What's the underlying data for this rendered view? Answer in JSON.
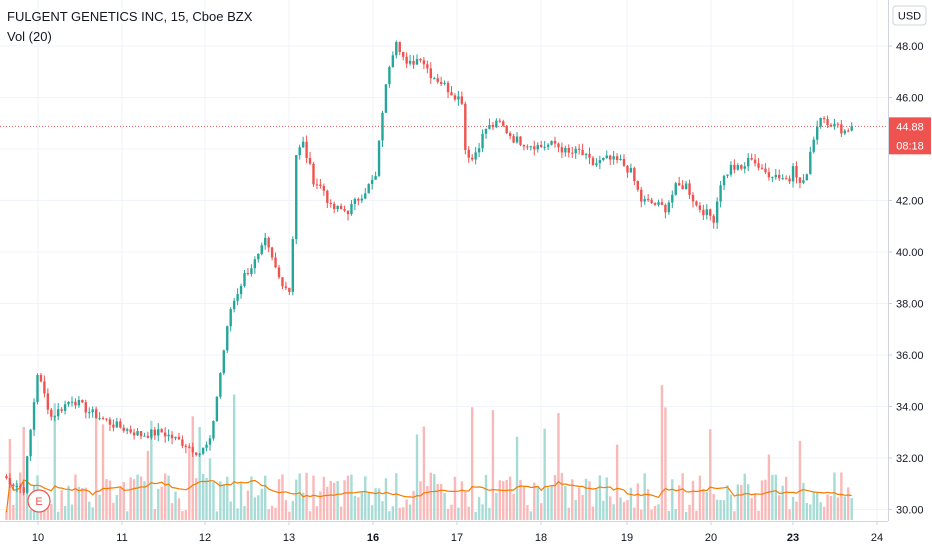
{
  "header": {
    "title": "FULGENT GENETICS INC, 15, Cboe BZX",
    "indicator": "Vol (20)",
    "currency": "USD"
  },
  "colors": {
    "up": "#26a69a",
    "down": "#ef5350",
    "grid": "#f0f3fa",
    "price_line": "#ef5350",
    "ma_line": "#f57c00",
    "vol_up": "#a7dcd6",
    "vol_down": "#f8b9b8"
  },
  "price_label": {
    "value": "44.88",
    "countdown": "08:18"
  },
  "earnings_marker": {
    "label": "E"
  },
  "chart_data": {
    "type": "candlestick",
    "y_axis": {
      "ticks": [
        "48.00",
        "46.00",
        "44.00",
        "42.00",
        "40.00",
        "38.00",
        "36.00",
        "34.00",
        "32.00",
        "30.00"
      ],
      "range": [
        29.7,
        49.2
      ]
    },
    "x_axis": {
      "ticks": [
        "10",
        "11",
        "12",
        "13",
        "16",
        "17",
        "18",
        "19",
        "20",
        "23",
        "24"
      ],
      "bold": [
        "16",
        "23"
      ]
    },
    "current_price": 44.88,
    "anchors": [
      [
        0,
        31.3
      ],
      [
        3,
        31.0
      ],
      [
        6,
        30.8
      ],
      [
        9,
        34.2
      ],
      [
        10,
        35.3
      ],
      [
        14,
        33.6
      ],
      [
        20,
        34.3
      ],
      [
        25,
        33.8
      ],
      [
        32,
        33.3
      ],
      [
        40,
        32.9
      ],
      [
        46,
        33.0
      ],
      [
        52,
        32.6
      ],
      [
        57,
        32.2
      ],
      [
        60,
        32.6
      ],
      [
        62,
        34.4
      ],
      [
        64,
        36.2
      ],
      [
        66,
        37.8
      ],
      [
        70,
        39.1
      ],
      [
        74,
        39.8
      ],
      [
        76,
        40.4
      ],
      [
        80,
        39.0
      ],
      [
        83,
        38.5
      ],
      [
        84,
        40.6
      ],
      [
        85,
        43.8
      ],
      [
        87,
        44.2
      ],
      [
        90,
        42.8
      ],
      [
        93,
        42.4
      ],
      [
        95,
        41.7
      ],
      [
        100,
        41.6
      ],
      [
        105,
        42.4
      ],
      [
        108,
        42.9
      ],
      [
        110,
        45.5
      ],
      [
        112,
        47.3
      ],
      [
        114,
        48.3
      ],
      [
        117,
        47.2
      ],
      [
        121,
        47.6
      ],
      [
        124,
        46.9
      ],
      [
        127,
        46.6
      ],
      [
        130,
        46.2
      ],
      [
        133,
        45.9
      ],
      [
        134,
        44.0
      ],
      [
        136,
        43.6
      ],
      [
        140,
        44.8
      ],
      [
        144,
        45.0
      ],
      [
        148,
        44.4
      ],
      [
        152,
        44.2
      ],
      [
        156,
        44.1
      ],
      [
        160,
        44.2
      ],
      [
        164,
        43.8
      ],
      [
        167,
        43.9
      ],
      [
        171,
        43.4
      ],
      [
        175,
        43.6
      ],
      [
        179,
        43.5
      ],
      [
        182,
        43.1
      ],
      [
        185,
        42.0
      ],
      [
        188,
        41.9
      ],
      [
        192,
        41.7
      ],
      [
        195,
        42.5
      ],
      [
        198,
        42.6
      ],
      [
        201,
        41.8
      ],
      [
        204,
        41.5
      ],
      [
        206,
        41.3
      ],
      [
        208,
        42.7
      ],
      [
        211,
        43.3
      ],
      [
        214,
        43.2
      ],
      [
        217,
        43.7
      ],
      [
        220,
        43.1
      ],
      [
        224,
        43.0
      ],
      [
        228,
        42.8
      ],
      [
        229,
        43.5
      ],
      [
        231,
        42.6
      ],
      [
        233,
        43.0
      ],
      [
        235,
        44.5
      ],
      [
        237,
        45.3
      ],
      [
        239,
        45.1
      ],
      [
        241,
        44.9
      ],
      [
        244,
        44.7
      ],
      [
        246,
        44.88
      ]
    ],
    "volume": {
      "ma_period": 20
    }
  }
}
